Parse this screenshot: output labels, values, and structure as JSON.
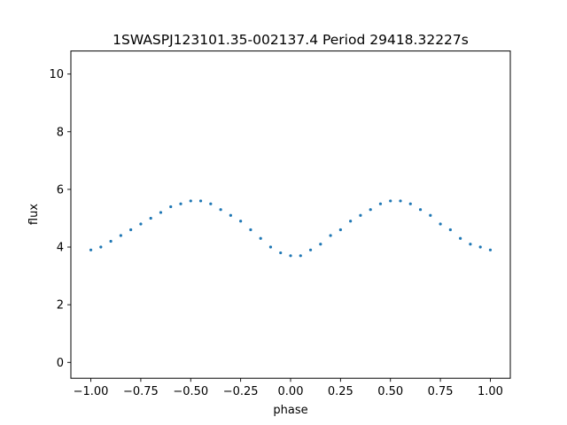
{
  "chart_data": {
    "type": "scatter",
    "title": "1SWASPJ123101.35-002137.4 Period 29418.32227s",
    "xlabel": "phase",
    "ylabel": "flux",
    "xlim": [
      -1.1,
      1.1
    ],
    "ylim": [
      -0.55,
      10.8
    ],
    "xticks": [
      -1.0,
      -0.75,
      -0.5,
      -0.25,
      0.0,
      0.25,
      0.5,
      0.75,
      1.0
    ],
    "xtick_labels": [
      "−1.00",
      "−0.75",
      "−0.50",
      "−0.25",
      "0.00",
      "0.25",
      "0.50",
      "0.75",
      "1.00"
    ],
    "yticks": [
      0,
      2,
      4,
      6,
      8,
      10
    ],
    "ytick_labels": [
      "0",
      "2",
      "4",
      "6",
      "8",
      "10"
    ],
    "grid": false,
    "legend": "none",
    "color": "#1f77b4",
    "series": [
      {
        "x": [
          -1.0,
          -0.95,
          -0.9,
          -0.85,
          -0.8,
          -0.75,
          -0.7,
          -0.65,
          -0.6,
          -0.55,
          -0.5,
          -0.45,
          -0.4,
          -0.35,
          -0.3,
          -0.25,
          -0.2,
          -0.15,
          -0.1,
          -0.05,
          0.0,
          0.05,
          0.1,
          0.15,
          0.2,
          0.25,
          0.3,
          0.35,
          0.4,
          0.45,
          0.5,
          0.55,
          0.6,
          0.65,
          0.7,
          0.75,
          0.8,
          0.85,
          0.9,
          0.95,
          1.0
        ],
        "y": [
          3.9,
          4.0,
          4.2,
          4.4,
          4.6,
          4.8,
          5.0,
          5.2,
          5.4,
          5.5,
          5.6,
          5.6,
          5.5,
          5.3,
          5.1,
          4.9,
          4.6,
          4.3,
          4.0,
          3.8,
          3.7,
          3.7,
          3.9,
          4.1,
          4.4,
          4.6,
          4.9,
          5.1,
          5.3,
          5.5,
          5.6,
          5.6,
          5.5,
          5.3,
          5.1,
          4.8,
          4.6,
          4.3,
          4.1,
          4.0,
          3.9
        ]
      }
    ]
  }
}
